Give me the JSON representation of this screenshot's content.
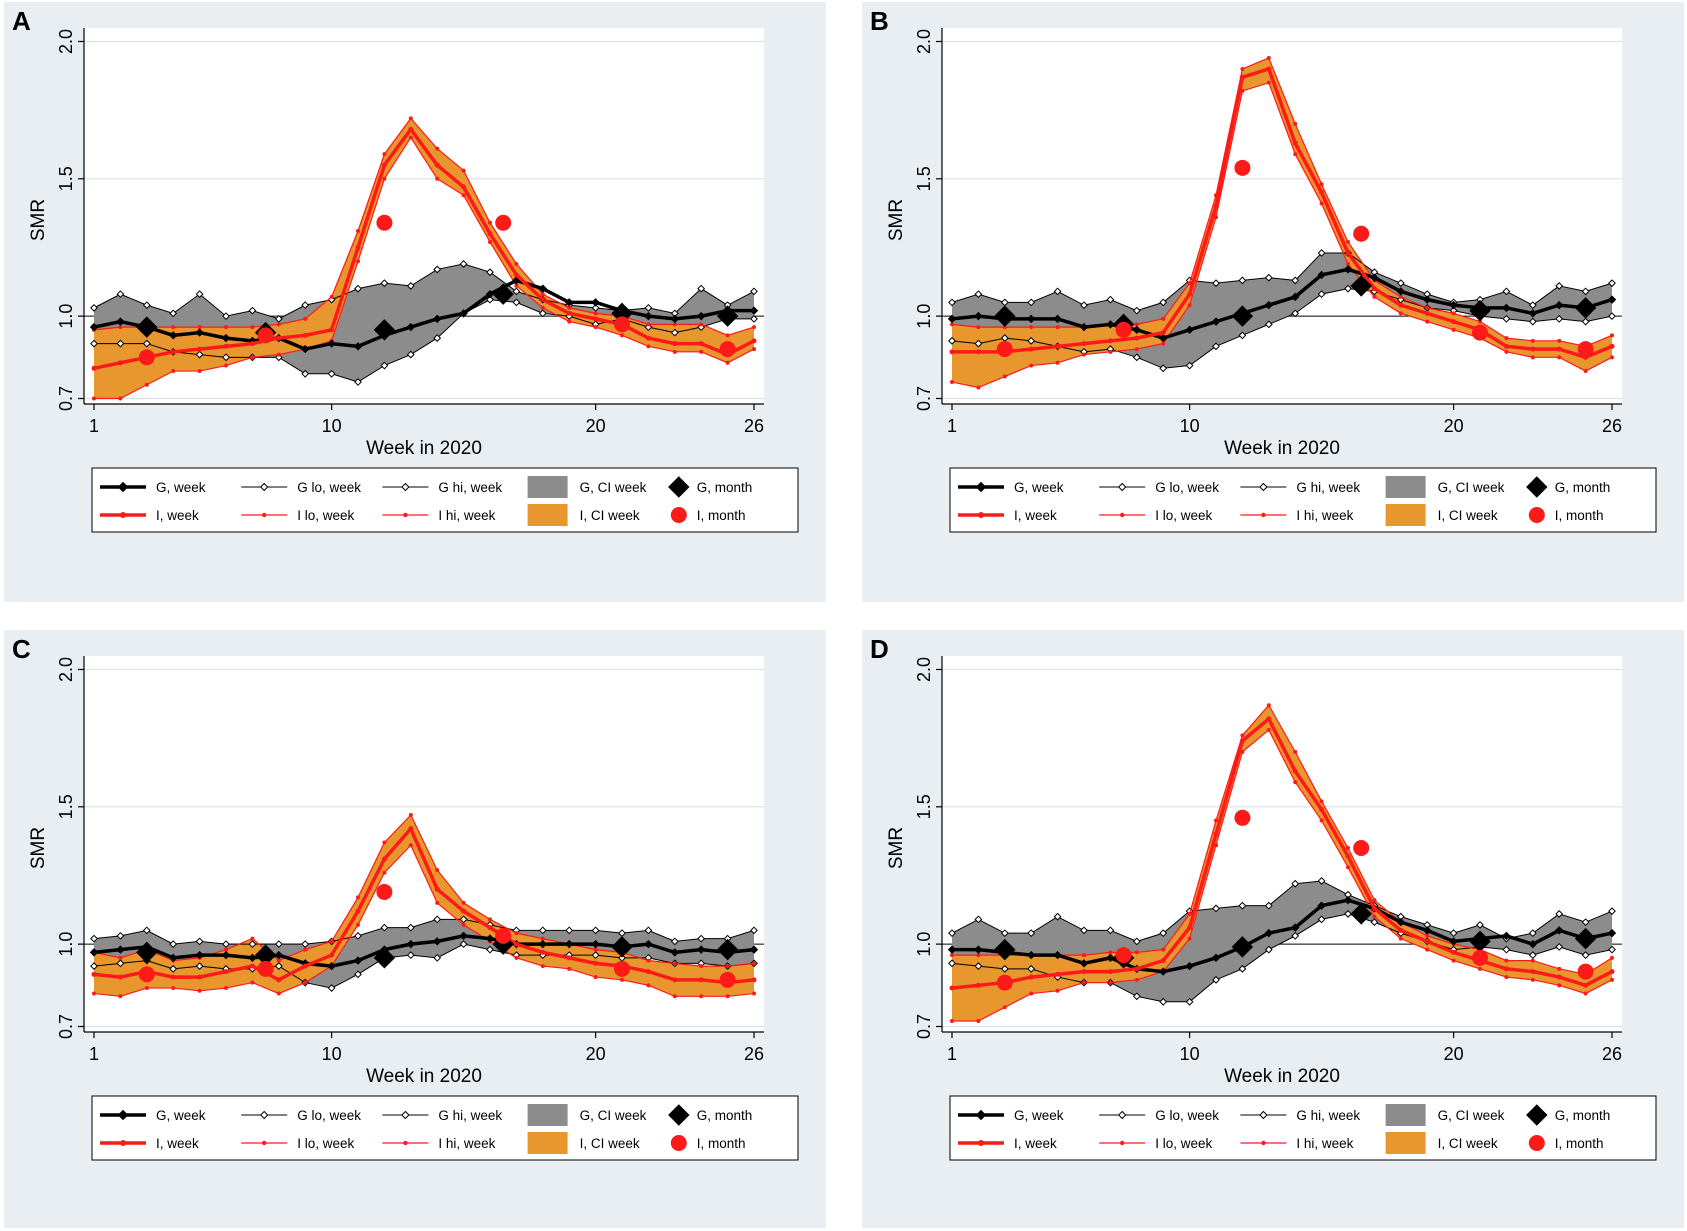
{
  "colors": {
    "g_line": "#000000",
    "g_band": "#8c8c8c",
    "i_line": "#ff1a1a",
    "i_band": "#e8962e",
    "panel_bg": "#e8eef2",
    "plot_bg": "#ffffff",
    "grid": "#d6e4ea"
  },
  "legend_labels": {
    "g_week": "G, week",
    "g_lo": "G lo, week",
    "g_hi": "G hi, week",
    "g_ci": "G, CI week",
    "g_month": "G, month",
    "i_week": "I, week",
    "i_lo": "I lo, week",
    "i_hi": "I hi, week",
    "i_ci": "I, CI week",
    "i_month": "I, month"
  },
  "chart_data": [
    {
      "type": "line",
      "panel": "A",
      "xlabel": "Week in 2020",
      "ylabel": "SMR",
      "xticks": [
        1,
        10,
        20,
        26
      ],
      "yticks": [
        "0.7",
        "1.0",
        "1.5",
        "2.0"
      ],
      "ylim": [
        0.68,
        2.02
      ],
      "xlim": [
        1,
        26
      ],
      "x": [
        1,
        2,
        3,
        4,
        5,
        6,
        7,
        8,
        9,
        10,
        11,
        12,
        13,
        14,
        15,
        16,
        17,
        18,
        19,
        20,
        21,
        22,
        23,
        24,
        25,
        26
      ],
      "series": [
        {
          "name": "G, week",
          "values": [
            0.96,
            0.98,
            0.96,
            0.93,
            0.94,
            0.92,
            0.91,
            0.92,
            0.88,
            0.9,
            0.89,
            0.93,
            0.96,
            0.99,
            1.01,
            1.08,
            1.13,
            1.1,
            1.05,
            1.05,
            1.02,
            1.0,
            0.99,
            1.0,
            1.02,
            1.02
          ]
        },
        {
          "name": "G lo, week",
          "values": [
            0.9,
            0.9,
            0.9,
            0.87,
            0.86,
            0.85,
            0.85,
            0.85,
            0.79,
            0.79,
            0.76,
            0.82,
            0.86,
            0.92,
            1.01,
            1.06,
            1.05,
            1.01,
            1.0,
            0.97,
            0.99,
            0.96,
            0.94,
            0.96,
            0.99,
            0.99
          ]
        },
        {
          "name": "G hi, week",
          "values": [
            1.03,
            1.08,
            1.04,
            1.01,
            1.08,
            1.0,
            1.02,
            0.99,
            1.04,
            1.06,
            1.1,
            1.12,
            1.11,
            1.17,
            1.19,
            1.16,
            1.09,
            1.06,
            1.04,
            1.03,
            1.02,
            1.03,
            1.01,
            1.1,
            1.04,
            1.09
          ]
        },
        {
          "name": "I, week",
          "values": [
            0.81,
            0.83,
            0.85,
            0.87,
            0.88,
            0.89,
            0.9,
            0.92,
            0.93,
            0.95,
            1.25,
            1.55,
            1.68,
            1.55,
            1.47,
            1.3,
            1.15,
            1.06,
            1.01,
            0.99,
            0.97,
            0.92,
            0.9,
            0.9,
            0.86,
            0.91
          ]
        },
        {
          "name": "I lo, week",
          "values": [
            0.7,
            0.7,
            0.75,
            0.8,
            0.8,
            0.82,
            0.85,
            0.86,
            0.88,
            0.91,
            1.2,
            1.5,
            1.65,
            1.5,
            1.44,
            1.27,
            1.11,
            1.03,
            0.98,
            0.96,
            0.93,
            0.89,
            0.87,
            0.87,
            0.83,
            0.88
          ]
        },
        {
          "name": "I hi, week",
          "values": [
            0.95,
            0.96,
            0.96,
            0.96,
            0.96,
            0.96,
            0.96,
            0.97,
            0.99,
            1.07,
            1.31,
            1.59,
            1.72,
            1.61,
            1.53,
            1.34,
            1.19,
            1.08,
            1.03,
            1.01,
            1.0,
            0.97,
            0.97,
            0.97,
            0.93,
            0.96
          ]
        },
        {
          "name": "G, month",
          "x": [
            3,
            7.5,
            12,
            16.5,
            21,
            25
          ],
          "values": [
            0.96,
            0.94,
            0.95,
            1.08,
            1.01,
            1.0
          ]
        },
        {
          "name": "I, month",
          "x": [
            3,
            7.5,
            12,
            16.5,
            21,
            25
          ],
          "values": [
            0.85,
            0.93,
            1.34,
            1.34,
            0.97,
            0.88
          ]
        }
      ]
    },
    {
      "type": "line",
      "panel": "B",
      "xlabel": "Week in 2020",
      "ylabel": "SMR",
      "xticks": [
        1,
        10,
        20,
        26
      ],
      "yticks": [
        "0.7",
        "1.0",
        "1.5",
        "2.0"
      ],
      "ylim": [
        0.68,
        2.02
      ],
      "xlim": [
        1,
        26
      ],
      "x": [
        1,
        2,
        3,
        4,
        5,
        6,
        7,
        8,
        9,
        10,
        11,
        12,
        13,
        14,
        15,
        16,
        17,
        18,
        19,
        20,
        21,
        22,
        23,
        24,
        25,
        26
      ],
      "series": [
        {
          "name": "G, week",
          "values": [
            0.99,
            1.0,
            0.99,
            0.99,
            0.99,
            0.96,
            0.97,
            0.95,
            0.92,
            0.95,
            0.98,
            1.01,
            1.04,
            1.07,
            1.15,
            1.17,
            1.14,
            1.09,
            1.06,
            1.04,
            1.03,
            1.03,
            1.01,
            1.04,
            1.03,
            1.06
          ]
        },
        {
          "name": "G lo, week",
          "values": [
            0.91,
            0.9,
            0.92,
            0.91,
            0.89,
            0.87,
            0.88,
            0.85,
            0.81,
            0.82,
            0.89,
            0.93,
            0.97,
            1.01,
            1.08,
            1.1,
            1.09,
            1.06,
            1.03,
            1.02,
            1.0,
            0.99,
            0.98,
            0.99,
            0.98,
            1.0
          ]
        },
        {
          "name": "G hi, week",
          "values": [
            1.05,
            1.08,
            1.05,
            1.05,
            1.09,
            1.04,
            1.06,
            1.02,
            1.05,
            1.13,
            1.12,
            1.13,
            1.14,
            1.13,
            1.23,
            1.23,
            1.16,
            1.12,
            1.08,
            1.05,
            1.06,
            1.09,
            1.04,
            1.11,
            1.09,
            1.12
          ]
        },
        {
          "name": "I, week",
          "values": [
            0.87,
            0.87,
            0.87,
            0.88,
            0.89,
            0.9,
            0.91,
            0.92,
            0.94,
            1.08,
            1.4,
            1.87,
            1.9,
            1.63,
            1.45,
            1.23,
            1.1,
            1.04,
            1.01,
            0.98,
            0.95,
            0.89,
            0.88,
            0.88,
            0.85,
            0.89
          ]
        },
        {
          "name": "I lo, week",
          "values": [
            0.76,
            0.74,
            0.78,
            0.82,
            0.83,
            0.86,
            0.87,
            0.88,
            0.9,
            1.04,
            1.36,
            1.82,
            1.85,
            1.59,
            1.41,
            1.19,
            1.07,
            1.01,
            0.98,
            0.95,
            0.92,
            0.87,
            0.85,
            0.85,
            0.8,
            0.85
          ]
        },
        {
          "name": "I hi, week",
          "values": [
            0.97,
            0.96,
            0.96,
            0.96,
            0.96,
            0.96,
            0.97,
            0.97,
            0.99,
            1.12,
            1.44,
            1.9,
            1.94,
            1.7,
            1.48,
            1.27,
            1.13,
            1.07,
            1.03,
            1.01,
            0.98,
            0.92,
            0.91,
            0.91,
            0.89,
            0.93
          ]
        },
        {
          "name": "G, month",
          "x": [
            3,
            7.5,
            12,
            16.5,
            21,
            25
          ],
          "values": [
            1.0,
            0.97,
            1.0,
            1.11,
            1.02,
            1.03
          ]
        },
        {
          "name": "I, month",
          "x": [
            3,
            7.5,
            12,
            16.5,
            21,
            25
          ],
          "values": [
            0.88,
            0.95,
            1.54,
            1.3,
            0.94,
            0.88
          ]
        }
      ]
    },
    {
      "type": "line",
      "panel": "C",
      "xlabel": "Week in 2020",
      "ylabel": "SMR",
      "xticks": [
        1,
        10,
        20,
        26
      ],
      "yticks": [
        "0.7",
        "1.0",
        "1.5",
        "2.0"
      ],
      "ylim": [
        0.68,
        2.02
      ],
      "xlim": [
        1,
        26
      ],
      "x": [
        1,
        2,
        3,
        4,
        5,
        6,
        7,
        8,
        9,
        10,
        11,
        12,
        13,
        14,
        15,
        16,
        17,
        18,
        19,
        20,
        21,
        22,
        23,
        24,
        25,
        26
      ],
      "series": [
        {
          "name": "G, week",
          "values": [
            0.97,
            0.98,
            0.99,
            0.95,
            0.96,
            0.96,
            0.95,
            0.96,
            0.93,
            0.92,
            0.94,
            0.98,
            1.0,
            1.01,
            1.03,
            1.02,
            1.0,
            1.0,
            1.0,
            1.0,
            0.99,
            1.0,
            0.97,
            0.98,
            0.97,
            0.98
          ]
        },
        {
          "name": "G lo, week",
          "values": [
            0.92,
            0.93,
            0.94,
            0.91,
            0.92,
            0.91,
            0.91,
            0.92,
            0.86,
            0.84,
            0.89,
            0.95,
            0.96,
            0.95,
            1.0,
            0.98,
            0.96,
            0.96,
            0.96,
            0.96,
            0.95,
            0.95,
            0.93,
            0.93,
            0.92,
            0.93
          ]
        },
        {
          "name": "G hi, week",
          "values": [
            1.02,
            1.03,
            1.05,
            1.0,
            1.01,
            1.0,
            1.0,
            1.0,
            1.0,
            1.01,
            1.03,
            1.06,
            1.06,
            1.09,
            1.09,
            1.07,
            1.05,
            1.05,
            1.05,
            1.05,
            1.04,
            1.05,
            1.01,
            1.02,
            1.02,
            1.05
          ]
        },
        {
          "name": "I, week",
          "values": [
            0.89,
            0.88,
            0.9,
            0.88,
            0.88,
            0.9,
            0.92,
            0.87,
            0.92,
            0.96,
            1.12,
            1.31,
            1.42,
            1.2,
            1.12,
            1.06,
            1.0,
            0.97,
            0.95,
            0.93,
            0.92,
            0.9,
            0.87,
            0.87,
            0.86,
            0.87
          ]
        },
        {
          "name": "I lo, week",
          "values": [
            0.82,
            0.81,
            0.84,
            0.84,
            0.83,
            0.84,
            0.86,
            0.82,
            0.86,
            0.92,
            1.07,
            1.26,
            1.36,
            1.15,
            1.07,
            1.01,
            0.95,
            0.92,
            0.91,
            0.88,
            0.87,
            0.85,
            0.81,
            0.81,
            0.81,
            0.82
          ]
        },
        {
          "name": "I hi, week",
          "values": [
            0.97,
            0.95,
            0.98,
            0.94,
            0.95,
            0.98,
            1.02,
            0.94,
            0.98,
            1.01,
            1.17,
            1.37,
            1.47,
            1.27,
            1.15,
            1.09,
            1.04,
            1.02,
            1.0,
            0.98,
            0.97,
            0.94,
            0.93,
            0.92,
            0.92,
            0.93
          ]
        },
        {
          "name": "G, month",
          "x": [
            3,
            7.5,
            12,
            16.5,
            21,
            25
          ],
          "values": [
            0.97,
            0.96,
            0.95,
            1.0,
            0.99,
            0.98
          ]
        },
        {
          "name": "I, month",
          "x": [
            3,
            7.5,
            12,
            16.5,
            21,
            25
          ],
          "values": [
            0.89,
            0.91,
            1.19,
            1.03,
            0.91,
            0.87
          ]
        }
      ]
    },
    {
      "type": "line",
      "panel": "D",
      "xlabel": "Week in 2020",
      "ylabel": "SMR",
      "xticks": [
        1,
        10,
        20,
        26
      ],
      "yticks": [
        "0.7",
        "1.0",
        "1.5",
        "2.0"
      ],
      "ylim": [
        0.68,
        2.02
      ],
      "xlim": [
        1,
        26
      ],
      "x": [
        1,
        2,
        3,
        4,
        5,
        6,
        7,
        8,
        9,
        10,
        11,
        12,
        13,
        14,
        15,
        16,
        17,
        18,
        19,
        20,
        21,
        22,
        23,
        24,
        25,
        26
      ],
      "series": [
        {
          "name": "G, week",
          "values": [
            0.98,
            0.98,
            0.97,
            0.96,
            0.96,
            0.93,
            0.95,
            0.91,
            0.9,
            0.92,
            0.95,
            0.99,
            1.04,
            1.06,
            1.14,
            1.16,
            1.13,
            1.08,
            1.05,
            1.01,
            1.02,
            1.03,
            1.0,
            1.05,
            1.02,
            1.04
          ]
        },
        {
          "name": "G lo, week",
          "values": [
            0.93,
            0.92,
            0.91,
            0.91,
            0.88,
            0.86,
            0.86,
            0.81,
            0.79,
            0.79,
            0.87,
            0.91,
            0.98,
            1.03,
            1.09,
            1.11,
            1.08,
            1.04,
            1.01,
            0.98,
            0.99,
            0.98,
            0.96,
            0.99,
            0.96,
            0.98
          ]
        },
        {
          "name": "G hi, week",
          "values": [
            1.04,
            1.09,
            1.04,
            1.04,
            1.1,
            1.05,
            1.05,
            1.01,
            1.04,
            1.12,
            1.13,
            1.14,
            1.14,
            1.22,
            1.23,
            1.18,
            1.14,
            1.1,
            1.07,
            1.04,
            1.07,
            1.02,
            1.04,
            1.11,
            1.08,
            1.12
          ]
        },
        {
          "name": "I, week",
          "values": [
            0.84,
            0.85,
            0.86,
            0.88,
            0.89,
            0.9,
            0.9,
            0.91,
            0.94,
            1.06,
            1.4,
            1.74,
            1.82,
            1.63,
            1.49,
            1.32,
            1.13,
            1.05,
            1.01,
            0.97,
            0.94,
            0.91,
            0.9,
            0.88,
            0.85,
            0.9
          ]
        },
        {
          "name": "I lo, week",
          "values": [
            0.72,
            0.72,
            0.77,
            0.82,
            0.83,
            0.86,
            0.86,
            0.87,
            0.9,
            1.02,
            1.36,
            1.7,
            1.78,
            1.59,
            1.45,
            1.28,
            1.1,
            1.02,
            0.98,
            0.94,
            0.91,
            0.88,
            0.87,
            0.85,
            0.82,
            0.87
          ]
        },
        {
          "name": "I hi, week",
          "values": [
            0.96,
            0.96,
            0.96,
            0.96,
            0.96,
            0.96,
            0.97,
            0.97,
            0.98,
            1.11,
            1.45,
            1.76,
            1.87,
            1.7,
            1.52,
            1.35,
            1.16,
            1.08,
            1.03,
            1.0,
            0.98,
            0.94,
            0.94,
            0.91,
            0.89,
            0.95
          ]
        },
        {
          "name": "G, month",
          "x": [
            3,
            7.5,
            12,
            16.5,
            21,
            25
          ],
          "values": [
            0.98,
            0.95,
            0.99,
            1.11,
            1.01,
            1.02
          ]
        },
        {
          "name": "I, month",
          "x": [
            3,
            7.5,
            12,
            16.5,
            21,
            25
          ],
          "values": [
            0.86,
            0.96,
            1.46,
            1.35,
            0.95,
            0.9
          ]
        }
      ]
    }
  ]
}
